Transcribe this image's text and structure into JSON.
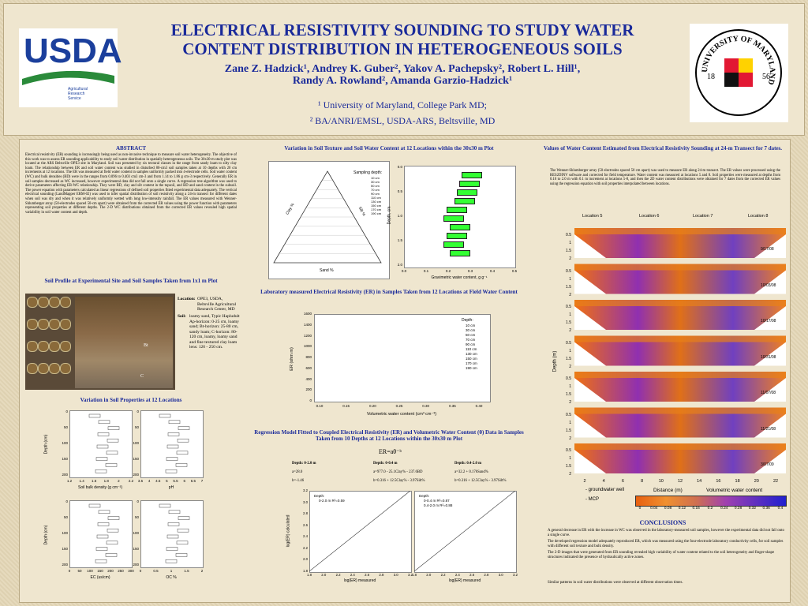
{
  "header": {
    "title_lines": [
      "ELECTRICAL RESISTIVITY SOUNDING TO STUDY WATER",
      "CONTENT DISTRIBUTION IN HETEROGENEOUS SOILS"
    ],
    "authors_lines": [
      "Zane Z. Hadzick¹, Andrey K. Guber², Yakov A. Pachepsky², Robert L. Hill¹,",
      "Randy A. Rowland², Amanda Garzio-Hadzick¹"
    ],
    "affiliations": [
      "¹ University of Maryland, College Park MD;",
      "² BA/ANRI/EMSL, USDA-ARS, Beltsville, MD"
    ],
    "usda_logo": "USDA",
    "ars_logo": [
      "Agricultural",
      "Research",
      "Service"
    ],
    "umd_logo": {
      "ring": "UNIVERSITY OF MARYLAND",
      "left": "18",
      "right": "56"
    }
  },
  "abstract": {
    "heading": "ABSTRACT",
    "text": "Electrical resistivity (ER) sounding is increasingly being used as non-invasive technique to measure soil water heterogeneity. The objective of this work was to assess ER sounding applicability to study soil water distribution in spatially heterogeneous soils. The 30x30-m study plot was located at the ARS Beltsville OPE3 site in Maryland. Soil was presented by six textural classes in the range from sandy loam to silty clay loam. The relationship between ER and soil water content was studied in disturbed 80-cm3 soil samples taken at 10 depths with 20 cm increments at 12 locations. The ER was measured at field water content in samples uniformly packed into 4-electrode cells. Soil water content (WC) and bulk densities (BD) were in the ranges from 0.096 to 0.403 cm3 cm-3 and from 1.14 to 1.86 g cm-3 respectively. Generally ER in soil samples decreased as WC increased, however experimental data did not fall onto a single curve. A regression tree algorithm was used to derive parameters affecting ER-WC relationship. They were BD, clay and silt content in the topsoil, and BD and sand content in the subsoil. The power equation with parameters calculated as linear regressions of defined soil properties fitted experimental data adequately. The vertical electrical sounding (LandMapper ERM-02) was used to infer spatial distribution of soil resistivity along a 24-m transect for different dates when soil was dry and when it was relatively uniformly wetted with long low-intensity rainfall. The ER values measured with Wenner-Shlumberger array (50-electrodes spaced 50-cm apart) were obtained from the corrected ER values using the power function with parameters representing soil properties at different depths. The 2-D WC distributions obtained from the corrected ER values revealed high spatial variability in soil water content and depth."
  },
  "soil_profile": {
    "heading": "Soil Profile at Experimental Site and Soil Samples Taken from 1x1 m Plot",
    "location_label": "Location:",
    "location": "OPE3, USDA, Beltsville Agricultural Research Center, MD",
    "soil_label": "Soil:",
    "soil": "loamy sand, Typic Hapludult Ap-horizon: 0-25 cm, loamy sand; Bt-horizon: 25-80 cm, sandy loam; C-horizon: 80-120 cm, loamy, loamy sand and fine textured clay loam lens: 120 - 250 cm.",
    "horizons": [
      "Bt",
      "C"
    ]
  },
  "soil_props": {
    "heading": "Variation in Soil Properties at 12 Locations",
    "depth_label": "Depth (cm)",
    "x_labels": [
      "Soil bulk density (g cm⁻³)",
      "pH",
      "EC (us/cm)",
      "OC %"
    ],
    "depth_ticks": [
      "0",
      "50",
      "100",
      "150",
      "200"
    ],
    "bd_ticks": [
      "1.2",
      "1.4",
      "1.6",
      "1.8",
      "2",
      "2.2"
    ],
    "ph_ticks": [
      "3.5",
      "4",
      "4.5",
      "5",
      "5.5",
      "6",
      "6.5",
      "7"
    ],
    "ec_ticks": [
      "0",
      "50",
      "100",
      "150",
      "200",
      "250",
      "300"
    ],
    "oc_ticks": [
      "0",
      "0.5",
      "1",
      "1.5",
      "2"
    ]
  },
  "texture": {
    "heading": "Variation in Soil Texture and Soil Water Content at 12 Locations within the 30x30 m Plot",
    "legend_title": "Sampling depth:",
    "legend": [
      "10 cm",
      "30 cm",
      "50 cm",
      "70 cm",
      "90 cm",
      "110 cm",
      "130 cm",
      "150 cm",
      "170 cm",
      "190 cm"
    ],
    "sand_label": "Sand %",
    "clay_label": "Clay %",
    "silt_label": "Silt %",
    "depth_label": "Depth, cm",
    "wc_label": "Gravimetric water content, g g⁻¹",
    "depth_ticks": [
      "0.0",
      "0.5",
      "1.0",
      "1.5",
      "2.0"
    ],
    "wc_ticks": [
      "0.0",
      "0.1",
      "0.2",
      "0.3",
      "0.4",
      "0.5"
    ]
  },
  "er": {
    "heading": "Laboratory measured Electrical Resistivity (ER) in Samples Taken from 12 Locations at Field Water Content",
    "y_label": "ER (ohm m)",
    "x_label": "Volumetric water content (cm³ cm⁻³)",
    "yticks": [
      "0",
      "200",
      "400",
      "600",
      "800",
      "1000",
      "1200",
      "1400",
      "1600"
    ],
    "xticks": [
      "0.10",
      "0.15",
      "0.20",
      "0.25",
      "0.30",
      "0.35",
      "0.40"
    ],
    "legend_title": "Depth:",
    "legend": [
      "10 cm",
      "30 cm",
      "50 cm",
      "70 cm",
      "90 cm",
      "110 cm",
      "130 cm",
      "150 cm",
      "170 cm",
      "190 cm"
    ]
  },
  "regression": {
    "heading": "Regression Model Fitted to Coupled Electrical Resistivity (ER) and Volumetric Water Content (θ) Data in Samples Taken from 10 Depths at 12 Locations within the 30x30 m Plot",
    "formula": "ER=aθ⁻ᵇ",
    "table": [
      [
        "Depth: 0-2.0 m",
        "a=28.0",
        "b=-1.46"
      ],
      [
        "Depth: 0-0.4 m",
        "a=977.0 - 25.1Clay% - 237.6BD",
        "b=0.316 + 12.5Clay% - 3.97Silt%"
      ],
      [
        "Depth: 0.4-2.0 m",
        "a=32.2 + 0.176Sand%",
        "b=0.316 + 12.5Clay% - 3.97Silt%"
      ]
    ],
    "legend_title": "Depth:",
    "legend_left": [
      "0-2.0 m R²=0.59"
    ],
    "legend_right": [
      "0-0.4 m R²=0.87",
      "0.4-2.0 m R²=0.88"
    ],
    "y_label": "log(ER) calculated",
    "x_label": "log(ER) measured",
    "ticks": [
      "1.8",
      "2.0",
      "2.2",
      "2.4",
      "2.6",
      "2.8",
      "3.0",
      "3.2"
    ]
  },
  "sounding": {
    "heading": "Values of Water Content Estimated from Electrical Resistivity Sounding at 24-m Transect for 7 dates.",
    "text": "The Wenner-Shlumberger array (50 electrodes spaced 50 cm apart) was used to measure ER along 24-m transect. The ER values were processed using the RES2DINV software and corrected for field temperature. Water content was measured at locations 5 and 8. Soil properties were measured at depths from 0.10 to 2.0 m with 0.1 m increment at locations 5-8, and then the 2D water content distributions were obtained for 7 dates from the corrected ER values using the regression equation with soil properties interpolated between locations.",
    "locations": [
      "Location 5",
      "Location 6",
      "Location 7",
      "Location 8"
    ],
    "dates": [
      "9/17/08",
      "10/03/08",
      "10/17/08",
      "10/31/08",
      "11/07/08",
      "11/21/08",
      "3/07/09"
    ],
    "depth_label": "Depth (m)",
    "depth_ticks": [
      "0.5",
      "1",
      "1.5",
      "2"
    ],
    "distance_label": "Distance (m)",
    "distance_ticks": [
      "2",
      "4",
      "6",
      "8",
      "10",
      "12",
      "14",
      "16",
      "18",
      "20",
      "22"
    ],
    "colorbar_label": "Volumetric water content",
    "colorbar_ticks": [
      "0",
      "0.04",
      "0.08",
      "0.12",
      "0.16",
      "0.2",
      "0.24",
      "0.28",
      "0.32",
      "0.36",
      "0.4"
    ],
    "legend": [
      "- groundwater well",
      "- MCP"
    ]
  },
  "conclusions": {
    "heading": "CONCLUSIONS",
    "items": [
      "A general decrease in ER with the increase in WC was observed in the laboratory-measured soil samples, however the experimental data did not fall onto a single curve.",
      "The developed regression model adequately reproduced ER, which was measured using the four-electrode laboratory conductivity cells, for soil samples with different soil texture and bulk density.",
      "The 2-D images that were generated from ER sounding revealed high variability of water content related to the soil heterogeneity and finger-shape structures indicated the presence of hydraulically active zones.",
      "Similar patterns in soil water distributions were observed at different observation times."
    ]
  }
}
